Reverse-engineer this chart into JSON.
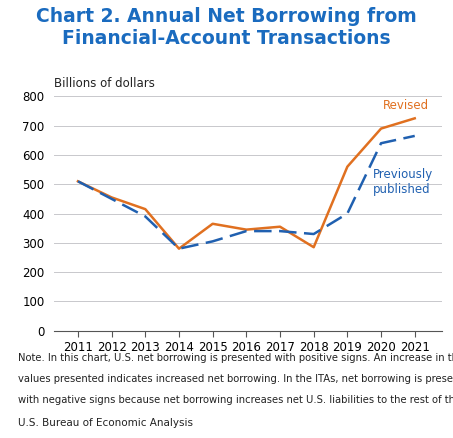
{
  "title": "Chart 2. Annual Net Borrowing from\nFinancial-Account Transactions",
  "title_color": "#1a6bbf",
  "ylabel": "Billions of dollars",
  "years": [
    2011,
    2012,
    2013,
    2014,
    2015,
    2016,
    2017,
    2018,
    2019,
    2020,
    2021
  ],
  "revised": [
    510,
    455,
    415,
    280,
    365,
    345,
    355,
    285,
    560,
    690,
    725
  ],
  "previously_published": [
    510,
    450,
    390,
    280,
    305,
    340,
    340,
    330,
    400,
    640,
    665
  ],
  "revised_color": "#e07020",
  "prev_pub_color": "#2060b0",
  "revised_label": "Revised",
  "prev_pub_label": "Previously\npublished",
  "ylim": [
    0,
    800
  ],
  "yticks": [
    0,
    100,
    200,
    300,
    400,
    500,
    600,
    700,
    800
  ],
  "background_color": "#ffffff",
  "grid_color": "#c8c8cc",
  "note_line1": "Note. In this chart, U.S. net borrowing is presented with positive signs. An increase in the",
  "note_line2": "values presented indicates increased net borrowing. In the ITAs, net borrowing is presented",
  "note_line3": "with negative signs because net borrowing increases net U.S. liabilities to the rest of the world.",
  "source_text": "U.S. Bureau of Economic Analysis",
  "note_fontsize": 7.2,
  "source_fontsize": 7.5,
  "title_fontsize": 13.5,
  "tick_fontsize": 8.5,
  "annotation_fontsize": 8.5
}
